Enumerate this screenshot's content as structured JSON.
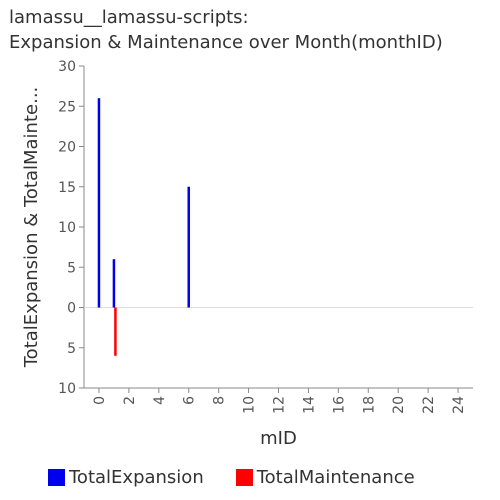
{
  "title_lines": [
    "lamassu__lamassu-scripts:",
    "Expansion & Maintenance over Month(monthID)"
  ],
  "chart_data": {
    "type": "bar",
    "title": "lamassu__lamassu-scripts: Expansion & Maintenance over Month(monthID)",
    "xlabel": "mID",
    "ylabel": "TotalExpansion & TotalMainte...",
    "xlim": [
      -1,
      25
    ],
    "ylim": [
      -10,
      30
    ],
    "x_ticks": [
      0,
      2,
      4,
      6,
      8,
      10,
      12,
      14,
      16,
      18,
      20,
      22,
      24
    ],
    "y_ticks": [
      -10,
      -5,
      0,
      5,
      10,
      15,
      20,
      25,
      30
    ],
    "y_tick_labels": [
      "10",
      "5",
      "0",
      "5",
      "10",
      "15",
      "20",
      "25",
      "30"
    ],
    "grid": false,
    "legend_position": "bottom",
    "series": [
      {
        "name": "TotalExpansion",
        "color": "#0000ee",
        "points": [
          {
            "x": 0,
            "y": 26
          },
          {
            "x": 1,
            "y": 6
          },
          {
            "x": 6,
            "y": 15
          }
        ]
      },
      {
        "name": "TotalMaintenance",
        "color": "#ff0000",
        "points": [
          {
            "x": 1,
            "y": -6
          }
        ]
      }
    ]
  }
}
